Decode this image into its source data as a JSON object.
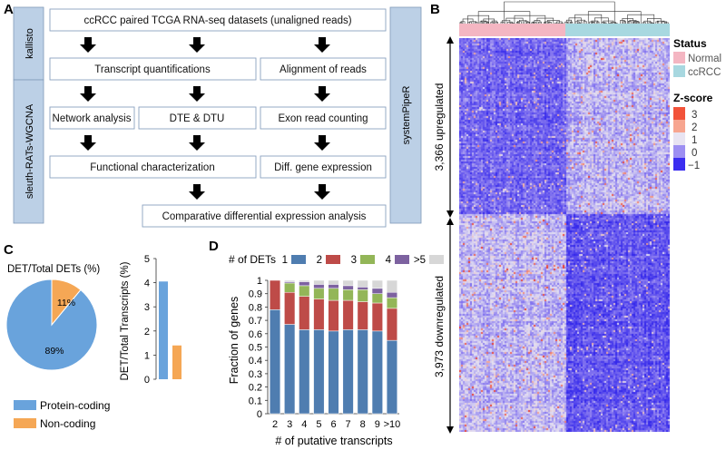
{
  "panels": {
    "a": {
      "letter": "A",
      "side_left_top": "kallisto",
      "side_left_bottom": "sleuth-RATs-WGCNA",
      "side_right": "systemPipeR",
      "boxes": {
        "top": "ccRCC paired TCGA RNA-seq datasets (unaligned reads)",
        "transcript": "Transcript quantifications",
        "alignment": "Alignment of reads",
        "network": "Network analysis",
        "dte": "DTE & DTU",
        "exon": "Exon read counting",
        "functional": "Functional characterization",
        "diffgene": "Diff. gene expression",
        "comparative": "Comparative differential expression analysis"
      }
    },
    "b": {
      "letter": "B",
      "status_title": "Status",
      "status_items": [
        {
          "label": "Normal",
          "color": "#f4b6c2"
        },
        {
          "label": "ccRCC",
          "color": "#a8d8e0"
        }
      ],
      "zscore_title": "Z-score",
      "zscore_items": [
        {
          "label": "3",
          "color": "#f2533a"
        },
        {
          "label": "2",
          "color": "#f7a58f"
        },
        {
          "label": "1",
          "color": "#e8e4f2"
        },
        {
          "label": "0",
          "color": "#9d8ff2"
        },
        {
          "label": "−1",
          "color": "#3b2ef0"
        }
      ],
      "upregulated": "3,366 upregulated",
      "downregulated": "3,973 downregulated"
    },
    "c": {
      "letter": "C",
      "pie_title": "DET/Total DETs (%)",
      "legend": [
        {
          "label": "Protein-coding",
          "color": "#69a3dc"
        },
        {
          "label": "Non-coding",
          "color": "#f5a755"
        }
      ]
    },
    "d": {
      "letter": "D",
      "legend_title": "# of DETs"
    }
  },
  "chart_data": [
    {
      "type": "pie",
      "title": "DET/Total DETs (%)",
      "labels": [
        "Protein-coding",
        "Non-coding"
      ],
      "values": [
        89,
        11
      ],
      "value_labels": [
        "89%",
        "11%"
      ],
      "colors": [
        "#69a3dc",
        "#f5a755"
      ]
    },
    {
      "type": "bar",
      "ylabel": "DET/Total Transcripts (%)",
      "categories": [
        "Protein-coding",
        "Non-coding"
      ],
      "values": [
        4.05,
        1.4
      ],
      "colors": [
        "#69a3dc",
        "#f5a755"
      ],
      "ylim": [
        0,
        5
      ],
      "yticks": [
        "0",
        "1",
        "2",
        "3",
        "4",
        "5"
      ]
    },
    {
      "type": "bar",
      "stacked": true,
      "xlabel": "# of putative transcripts",
      "ylabel": "Fraction of genes",
      "categories": [
        "2",
        "3",
        "4",
        "5",
        "6",
        "7",
        "8",
        "9",
        ">10"
      ],
      "ylim": [
        0,
        1
      ],
      "yticks": [
        "0",
        "0.1",
        "0.2",
        "0.3",
        "0.4",
        "0.5",
        "0.6",
        "0.7",
        "0.8",
        "0.9",
        "1"
      ],
      "series": [
        {
          "name": "1",
          "color": "#4f7db0",
          "values": [
            0.78,
            0.67,
            0.63,
            0.63,
            0.62,
            0.63,
            0.63,
            0.62,
            0.55
          ]
        },
        {
          "name": "2",
          "color": "#be4b48",
          "values": [
            0.22,
            0.24,
            0.25,
            0.23,
            0.23,
            0.22,
            0.21,
            0.21,
            0.24
          ]
        },
        {
          "name": "3",
          "color": "#93b658",
          "values": [
            0.0,
            0.07,
            0.08,
            0.08,
            0.09,
            0.08,
            0.09,
            0.07,
            0.08
          ]
        },
        {
          "name": "4",
          "color": "#7d62a0",
          "values": [
            0.0,
            0.01,
            0.03,
            0.03,
            0.03,
            0.03,
            0.02,
            0.04,
            0.04
          ]
        },
        {
          "name": ">5",
          "color": "#d7d7d7",
          "values": [
            0.0,
            0.01,
            0.01,
            0.03,
            0.03,
            0.04,
            0.05,
            0.06,
            0.09
          ]
        }
      ]
    }
  ]
}
